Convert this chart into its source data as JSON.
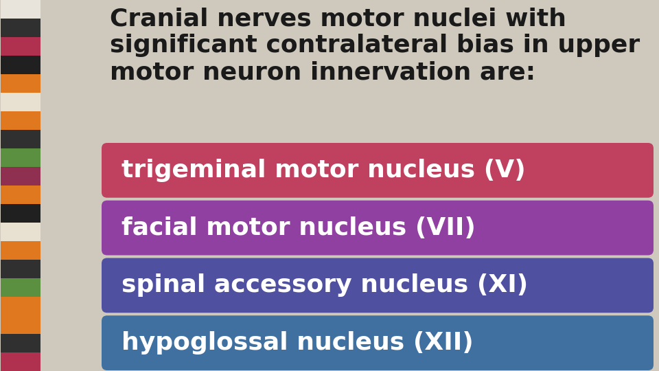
{
  "background_color": "#cec9bc",
  "left_strip_colors": [
    "#e8e4dc",
    "#303030",
    "#b03050",
    "#202020",
    "#e07820",
    "#e8e0d0",
    "#e07820",
    "#303030",
    "#5a9040",
    "#903050",
    "#e07820",
    "#202020",
    "#e8e0d0",
    "#e07820",
    "#303030",
    "#5a9040",
    "#e07820",
    "#e07820",
    "#303030",
    "#b03050"
  ],
  "title_text": "Cranial nerves motor nuclei with\nsignificant contralateral bias in upper\nmotor neuron innervation are:",
  "title_color": "#1a1a1a",
  "title_fontsize": 26,
  "boxes": [
    {
      "label": "trigeminal motor nucleus (V)",
      "color_left": "#c04060",
      "color_right": "#c87080",
      "text_color": "#ffffff",
      "fontsize": 26
    },
    {
      "label": "facial motor nucleus (VII)",
      "color_left": "#9040a0",
      "color_right": "#b070c0",
      "text_color": "#ffffff",
      "fontsize": 26
    },
    {
      "label": "spinal accessory nucleus (XI)",
      "color_left": "#5050a0",
      "color_right": "#7070b8",
      "text_color": "#ffffff",
      "fontsize": 26
    },
    {
      "label": "hypoglossal nucleus (XII)",
      "color_left": "#4070a0",
      "color_right": "#6090b8",
      "text_color": "#ffffff",
      "fontsize": 26
    }
  ],
  "fig_width": 9.6,
  "fig_height": 5.4,
  "dpi": 100
}
